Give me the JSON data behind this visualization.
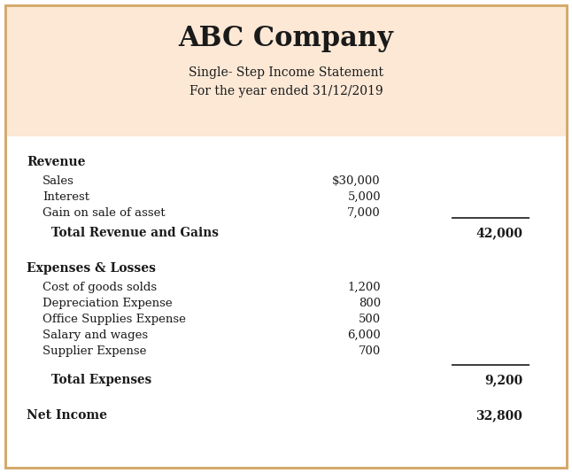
{
  "company": "ABC Company",
  "subtitle1": "Single- Step Income Statement",
  "subtitle2": "For the year ended 31/12/2019",
  "header_bg": "#fce8d5",
  "outer_border_color": "#d4a96a",
  "bg_color": "#ffffff",
  "text_color": "#1a1a1a",
  "revenue_section": {
    "header": "Revenue",
    "items": [
      {
        "label": "Sales",
        "col1": "$30,000"
      },
      {
        "label": "Interest",
        "col1": "5,000"
      },
      {
        "label": "Gain on sale of asset",
        "col1": "7,000"
      }
    ],
    "total_label": "Total Revenue and Gains",
    "total_value": "42,000"
  },
  "expenses_section": {
    "header": "Expenses & Losses",
    "items": [
      {
        "label": "Cost of goods solds",
        "col1": "1,200"
      },
      {
        "label": "Depreciation Expense",
        "col1": "800"
      },
      {
        "label": "Office Supplies Expense",
        "col1": "500"
      },
      {
        "label": "Salary and wages",
        "col1": "6,000"
      },
      {
        "label": "Supplier Expense",
        "col1": "700"
      }
    ],
    "total_label": "Total Expenses",
    "total_value": "9,200"
  },
  "net_income_label": "Net Income",
  "net_income_value": "32,800",
  "figw": 6.46,
  "figh": 5.34,
  "dpi": 100
}
